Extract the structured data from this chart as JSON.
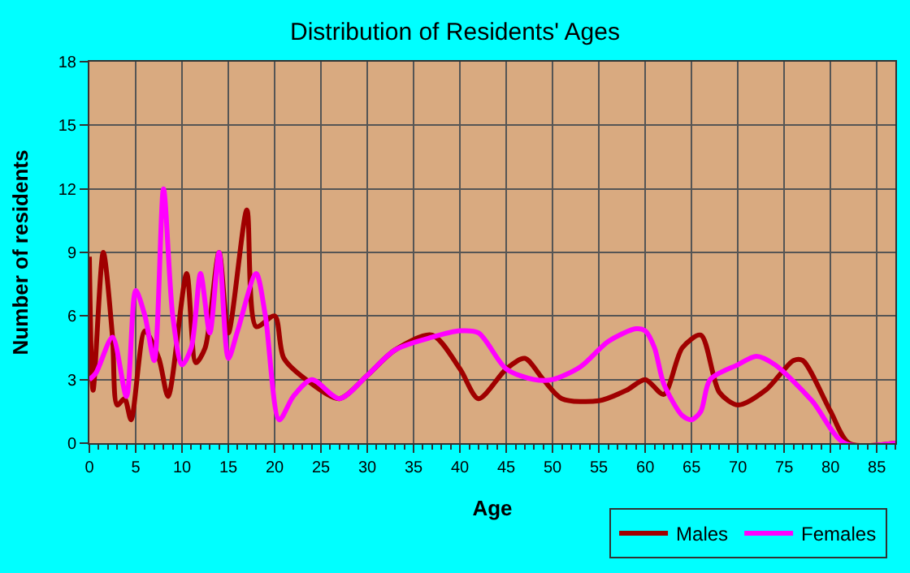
{
  "chart_data": {
    "type": "line",
    "title": "Distribution of Residents' Ages",
    "xlabel": "Age",
    "ylabel": "Number of residents",
    "xlim": [
      0,
      87
    ],
    "xticks": [
      0,
      5,
      10,
      15,
      20,
      25,
      30,
      35,
      40,
      45,
      50,
      55,
      60,
      65,
      70,
      75,
      80,
      85
    ],
    "ylim": [
      0,
      18
    ],
    "yticks": [
      0,
      3,
      6,
      9,
      12,
      15,
      18
    ],
    "grid": true,
    "legend": "bottom right",
    "marker": "none",
    "line_style": "solid",
    "series": [
      {
        "name": "Males",
        "color": "#a00000",
        "x": [
          0,
          0.4,
          1.5,
          2.5,
          3,
          3.8,
          4.5,
          6,
          7.5,
          8.5,
          10.5,
          11.5,
          12.5,
          14,
          15,
          17,
          18,
          20,
          21,
          24,
          27,
          30,
          33,
          37,
          40,
          42,
          45,
          47,
          49,
          51,
          55,
          58,
          60,
          62,
          64,
          66,
          68,
          70,
          73,
          76,
          77,
          80,
          82,
          87
        ],
        "values": [
          8.8,
          2.5,
          9,
          5,
          1.8,
          2.1,
          1.1,
          5.3,
          4,
          2.2,
          8,
          3.8,
          4.5,
          9,
          5.2,
          11,
          5.5,
          6,
          4,
          2.8,
          2.1,
          3.2,
          4.4,
          5.1,
          3.5,
          2.1,
          3.5,
          4,
          3,
          2.1,
          2,
          2.5,
          3,
          2.3,
          4.5,
          5.1,
          2.4,
          1.8,
          2.5,
          3.9,
          3.9,
          1.5,
          0,
          0
        ]
      },
      {
        "name": "Females",
        "color": "#ff00ff",
        "x": [
          0,
          0.7,
          2.5,
          4,
          5,
          6,
          7,
          8,
          9,
          10,
          11,
          12,
          13,
          14,
          15,
          16,
          18,
          19,
          20.5,
          22,
          24,
          27,
          30,
          33,
          37,
          40,
          42,
          45,
          48,
          50,
          53,
          56,
          59,
          60,
          61,
          62,
          64,
          65,
          66,
          67,
          70,
          72,
          74,
          78,
          81.5,
          87
        ],
        "values": [
          3,
          3.3,
          5,
          2.2,
          7.2,
          6,
          3.9,
          12,
          6,
          3.7,
          4.5,
          8,
          5.2,
          9,
          4,
          5.3,
          8,
          6,
          1.1,
          2.2,
          3,
          2.1,
          3.2,
          4.4,
          5,
          5.3,
          5.2,
          3.5,
          3,
          3,
          3.6,
          4.8,
          5.4,
          5.3,
          4.5,
          2.8,
          1.3,
          1.1,
          1.5,
          3,
          3.7,
          4.1,
          3.7,
          2,
          0,
          0
        ]
      }
    ]
  }
}
